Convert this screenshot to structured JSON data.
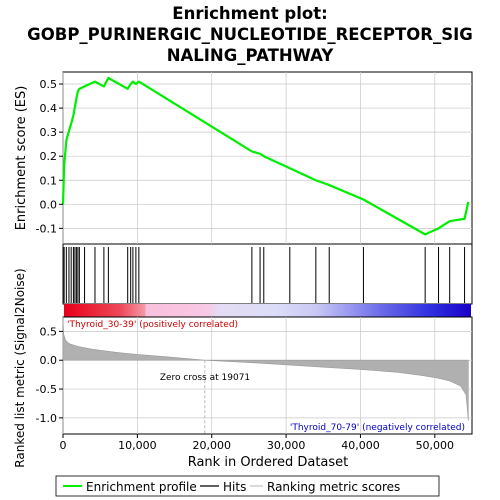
{
  "chart_data": {
    "type": "line",
    "title_lines": [
      "Enrichment plot:",
      "GOBP_PURINERGIC_NUCLEOTIDE_RECEPTOR_SIG",
      "NALING_PATHWAY"
    ],
    "ylabel_top": "Enrichment score (ES)",
    "ylabel_bottom": "Ranked list metric (Signal2Noise)",
    "xlabel": "Rank in Ordered Dataset",
    "xlim": [
      0,
      55000
    ],
    "x_ticks": [
      0,
      10000,
      20000,
      30000,
      40000,
      50000
    ],
    "x_tick_labels": [
      "0",
      "10,000",
      "20,000",
      "30,000",
      "40,000",
      "50,000"
    ],
    "es_ylim": [
      -0.165,
      0.55
    ],
    "es_ticks": [
      -0.1,
      0.0,
      0.1,
      0.2,
      0.3,
      0.4,
      0.5
    ],
    "es_tick_labels": [
      "-0.1",
      "0.0",
      "0.1",
      "0.2",
      "0.3",
      "0.4",
      "0.5"
    ],
    "metric_ylim": [
      -1.28,
      0.75
    ],
    "metric_ticks": [
      -1.0,
      -0.5,
      0.0,
      0.5
    ],
    "metric_tick_labels": [
      "-1.0",
      "-0.5",
      "0.0",
      "0.5"
    ],
    "series": [
      {
        "name": "Enrichment profile",
        "color": "#00ee00",
        "x": [
          0,
          150,
          150,
          450,
          450,
          800,
          800,
          1100,
          1100,
          1400,
          1400,
          1600,
          1600,
          1800,
          1800,
          2000,
          2000,
          2200,
          2200,
          2900,
          2900,
          4300,
          4300,
          5500,
          5500,
          6100,
          6100,
          8700,
          8700,
          9100,
          9100,
          9400,
          9400,
          9800,
          9800,
          10200,
          10200,
          25400,
          25400,
          26500,
          26500,
          27000,
          27000,
          30500,
          30500,
          34000,
          34000,
          35800,
          35800,
          40400,
          40400,
          48700,
          48700,
          50500,
          50500,
          52000,
          52000,
          54000,
          54000,
          54500
        ],
        "y": [
          0.0,
          0.16,
          0.16,
          0.265,
          0.265,
          0.305,
          0.305,
          0.335,
          0.335,
          0.37,
          0.37,
          0.405,
          0.405,
          0.44,
          0.44,
          0.47,
          0.47,
          0.48,
          0.48,
          0.49,
          0.49,
          0.51,
          0.51,
          0.49,
          0.49,
          0.525,
          0.525,
          0.48,
          0.48,
          0.5,
          0.5,
          0.51,
          0.51,
          0.5,
          0.5,
          0.51,
          0.51,
          0.22,
          0.22,
          0.21,
          0.21,
          0.2,
          0.2,
          0.15,
          0.15,
          0.1,
          0.1,
          0.08,
          0.08,
          0.02,
          0.02,
          -0.125,
          -0.125,
          -0.1,
          -0.1,
          -0.07,
          -0.07,
          -0.06,
          -0.06,
          0.01
        ]
      }
    ],
    "hits": [
      150,
      450,
      800,
      1100,
      1400,
      1600,
      1800,
      2000,
      2200,
      2900,
      4300,
      5500,
      6100,
      8700,
      9100,
      9400,
      9800,
      10200,
      25400,
      26500,
      27000,
      30500,
      34000,
      35800,
      40400,
      48700,
      50500,
      52000,
      54000
    ],
    "metric_curve": {
      "x": [
        0,
        100,
        300,
        600,
        1000,
        2000,
        4000,
        7000,
        10000,
        14000,
        19071,
        25000,
        30000,
        35000,
        40000,
        45000,
        48000,
        50000,
        52000,
        53500,
        54200,
        54500
      ],
      "y": [
        0.7,
        0.45,
        0.36,
        0.31,
        0.28,
        0.24,
        0.19,
        0.14,
        0.1,
        0.06,
        0.0,
        -0.04,
        -0.08,
        -0.12,
        -0.16,
        -0.21,
        -0.26,
        -0.3,
        -0.36,
        -0.45,
        -0.6,
        -1.05
      ]
    },
    "zero_cross_label": "Zero cross at 19071",
    "zero_cross_x": 19071,
    "pos_label": "'Thyroid_30-39' (positively correlated)",
    "neg_label": "'Thyroid_70-79' (negatively correlated)",
    "legend": [
      "Enrichment profile",
      "Hits",
      "Ranking metric scores"
    ],
    "legend_position": "bottom",
    "colors": {
      "es_line": "#00ee00",
      "hit": "#000000",
      "metric_fill": "#b0b0b0",
      "pos_label": "#cc0000",
      "neg_label": "#0000cc",
      "grid": "#c8c8c8",
      "heat_gradient": [
        "#e8001a",
        "#f07878",
        "#f8c0dc",
        "#dcdcf8",
        "#a0a0f0",
        "#3030e0",
        "#1a00c8"
      ]
    },
    "grid": true
  }
}
